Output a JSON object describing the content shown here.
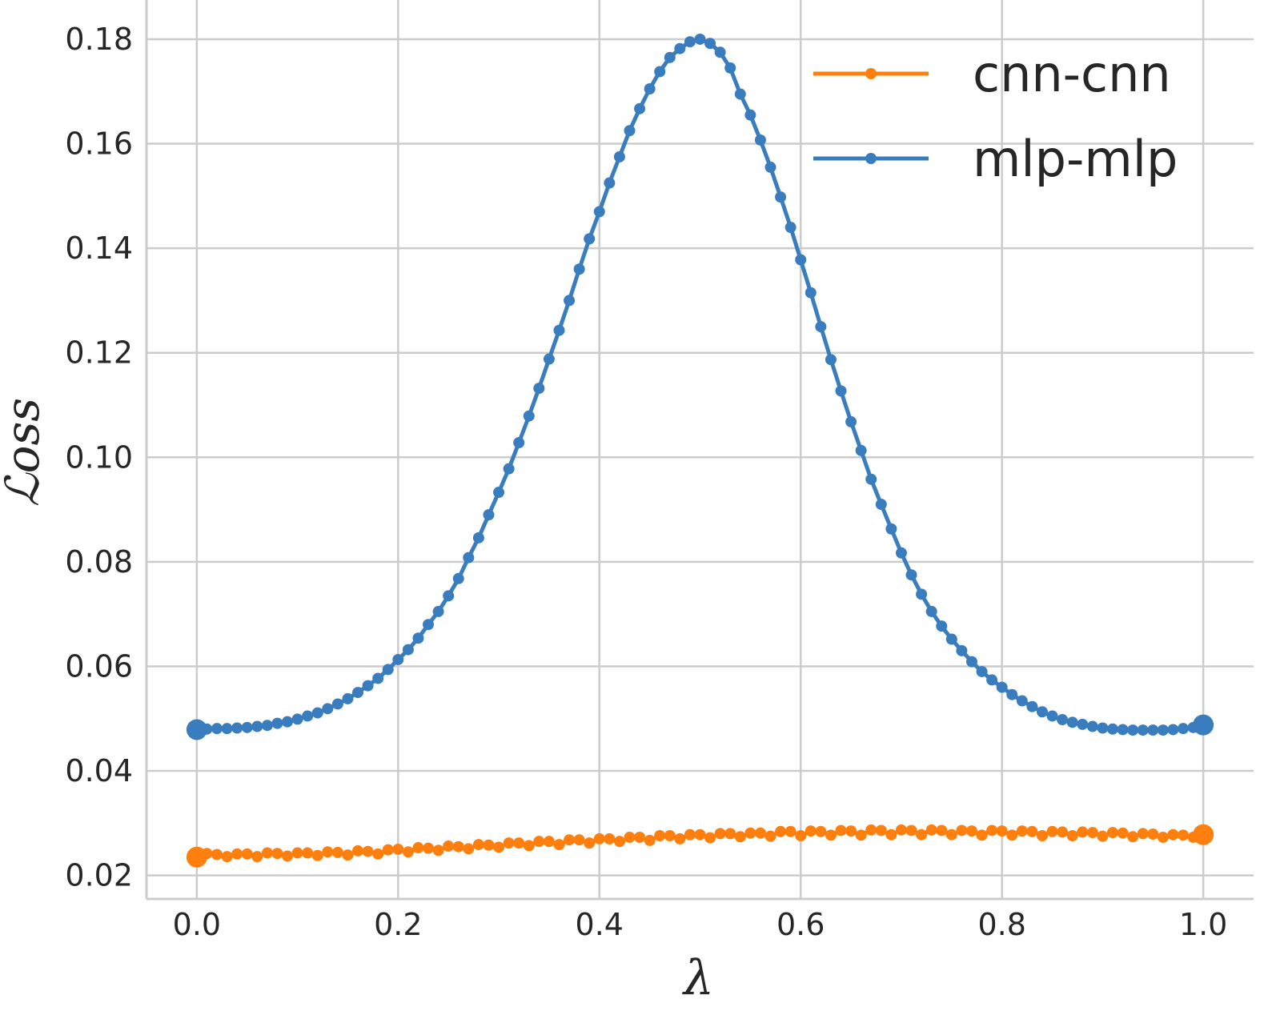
{
  "chart_data": {
    "type": "line",
    "xlabel": "λ",
    "ylabel": "ℒoss",
    "xlim": [
      -0.05,
      1.05
    ],
    "ylim": [
      0.0155,
      0.1875
    ],
    "xticks": [
      0.0,
      0.2,
      0.4,
      0.6,
      0.8,
      1.0
    ],
    "xtick_labels": [
      "0.0",
      "0.2",
      "0.4",
      "0.6",
      "0.8",
      "1.0"
    ],
    "yticks": [
      0.02,
      0.04,
      0.06,
      0.08,
      0.1,
      0.12,
      0.14,
      0.16,
      0.18
    ],
    "ytick_labels": [
      "0.02",
      "0.04",
      "0.06",
      "0.08",
      "0.10",
      "0.12",
      "0.14",
      "0.16",
      "0.18"
    ],
    "grid": true,
    "legend_position": "top-right",
    "x": [
      0.0,
      0.01,
      0.02,
      0.03,
      0.04,
      0.05,
      0.06,
      0.07,
      0.08,
      0.09,
      0.1,
      0.11,
      0.12,
      0.13,
      0.14,
      0.15,
      0.16,
      0.17,
      0.18,
      0.19,
      0.2,
      0.21,
      0.22,
      0.23,
      0.24,
      0.25,
      0.26,
      0.27,
      0.28,
      0.29,
      0.3,
      0.31,
      0.32,
      0.33,
      0.34,
      0.35,
      0.36,
      0.37,
      0.38,
      0.39,
      0.4,
      0.41,
      0.42,
      0.43,
      0.44,
      0.45,
      0.46,
      0.47,
      0.48,
      0.49,
      0.5,
      0.51,
      0.52,
      0.53,
      0.54,
      0.55,
      0.56,
      0.57,
      0.58,
      0.59,
      0.6,
      0.61,
      0.62,
      0.63,
      0.64,
      0.65,
      0.66,
      0.67,
      0.68,
      0.69,
      0.7,
      0.71,
      0.72,
      0.73,
      0.74,
      0.75,
      0.76,
      0.77,
      0.78,
      0.79,
      0.8,
      0.81,
      0.82,
      0.83,
      0.84,
      0.85,
      0.86,
      0.87,
      0.88,
      0.89,
      0.9,
      0.91,
      0.92,
      0.93,
      0.94,
      0.95,
      0.96,
      0.97,
      0.98,
      0.99,
      1.0
    ],
    "series": [
      {
        "name": "cnn-cnn",
        "color": "#ff7f0e",
        "values": [
          0.0235,
          0.0242,
          0.024,
          0.0236,
          0.0241,
          0.0241,
          0.0236,
          0.0243,
          0.0242,
          0.0237,
          0.0243,
          0.0243,
          0.0238,
          0.0245,
          0.0244,
          0.0239,
          0.0247,
          0.0246,
          0.0241,
          0.0249,
          0.025,
          0.0245,
          0.0253,
          0.0252,
          0.0248,
          0.0256,
          0.0255,
          0.0251,
          0.0259,
          0.0258,
          0.0254,
          0.0262,
          0.0262,
          0.0257,
          0.0265,
          0.0265,
          0.0259,
          0.0268,
          0.0268,
          0.0262,
          0.027,
          0.027,
          0.0265,
          0.0273,
          0.0273,
          0.0267,
          0.0276,
          0.0276,
          0.027,
          0.0278,
          0.0278,
          0.0272,
          0.028,
          0.028,
          0.0274,
          0.0281,
          0.0281,
          0.0275,
          0.0284,
          0.0284,
          0.0276,
          0.0285,
          0.0284,
          0.0277,
          0.0286,
          0.0285,
          0.0277,
          0.0287,
          0.0286,
          0.0278,
          0.0287,
          0.0286,
          0.0278,
          0.0287,
          0.0286,
          0.0278,
          0.0286,
          0.0285,
          0.0277,
          0.0286,
          0.0285,
          0.0277,
          0.0285,
          0.0284,
          0.0276,
          0.0284,
          0.0283,
          0.0276,
          0.0283,
          0.0282,
          0.0275,
          0.0282,
          0.0281,
          0.0274,
          0.028,
          0.0279,
          0.0273,
          0.0278,
          0.0277,
          0.0273,
          0.0278
        ]
      },
      {
        "name": "mlp-mlp",
        "color": "#3a7dbf",
        "values": [
          0.0479,
          0.048,
          0.0481,
          0.0481,
          0.0482,
          0.0483,
          0.0485,
          0.0487,
          0.0491,
          0.0494,
          0.0499,
          0.0505,
          0.0511,
          0.0519,
          0.0528,
          0.0538,
          0.055,
          0.0563,
          0.0577,
          0.0594,
          0.0613,
          0.0632,
          0.0654,
          0.068,
          0.0705,
          0.0735,
          0.0768,
          0.0808,
          0.0846,
          0.089,
          0.0933,
          0.0978,
          0.1028,
          0.1079,
          0.1132,
          0.1188,
          0.1243,
          0.13,
          0.136,
          0.1418,
          0.147,
          0.1525,
          0.1575,
          0.1625,
          0.1667,
          0.1705,
          0.1738,
          0.1765,
          0.1782,
          0.1795,
          0.18,
          0.1792,
          0.1775,
          0.1745,
          0.1695,
          0.1655,
          0.1607,
          0.1555,
          0.1498,
          0.144,
          0.1378,
          0.1315,
          0.125,
          0.1187,
          0.1127,
          0.1068,
          0.1013,
          0.0958,
          0.091,
          0.0863,
          0.0817,
          0.0775,
          0.0738,
          0.0705,
          0.0677,
          0.0652,
          0.063,
          0.0609,
          0.059,
          0.0574,
          0.056,
          0.0546,
          0.0534,
          0.0523,
          0.0513,
          0.0505,
          0.0498,
          0.0493,
          0.0489,
          0.0485,
          0.0482,
          0.048,
          0.0479,
          0.0478,
          0.0478,
          0.0478,
          0.0478,
          0.0479,
          0.0481,
          0.0483,
          0.0488
        ]
      }
    ]
  }
}
